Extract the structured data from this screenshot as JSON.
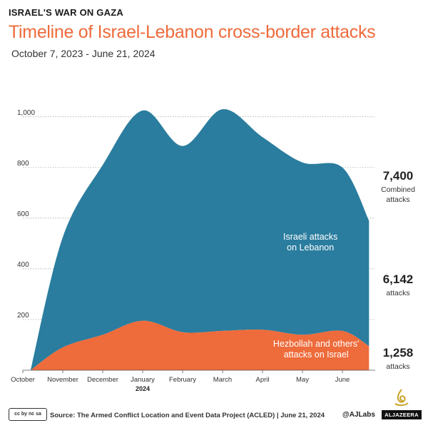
{
  "header": {
    "kicker": "ISRAEL'S WAR ON GAZA",
    "title": "Timeline of Israel-Lebanon cross-border attacks",
    "subtitle": "October 7, 2023 - June 21, 2024"
  },
  "chart_data": {
    "type": "area",
    "stacked": true,
    "x": [
      "2023-10-07",
      "2023-11-01",
      "2023-12-01",
      "2024-01-01",
      "2024-02-01",
      "2024-03-01",
      "2024-04-01",
      "2024-05-01",
      "2024-06-01",
      "2024-06-21"
    ],
    "x_tick_labels": [
      "October",
      "November",
      "December",
      "January",
      "February",
      "March",
      "April",
      "May",
      "June"
    ],
    "x_year_label": "2024",
    "y_ticks": [
      "200",
      "400",
      "600",
      "800",
      "1,000"
    ],
    "ylim": [
      0,
      1050
    ],
    "grid": true,
    "series": [
      {
        "name": "Hezbollah and others' attacks on Israel",
        "color": "#ee6b3b",
        "values": [
          0,
          90,
          140,
          195,
          150,
          155,
          160,
          140,
          155,
          95
        ]
      },
      {
        "name": "Israeli attacks on Lebanon",
        "color": "#2a7d9e",
        "values": [
          0,
          435,
          670,
          830,
          735,
          875,
          760,
          680,
          645,
          495
        ]
      }
    ],
    "labels": {
      "israeli": [
        "Israeli attacks",
        "on Lebanon"
      ],
      "hezbollah": [
        "Hezbollah and others'",
        "attacks on Israel"
      ]
    },
    "totals": [
      {
        "value": "7,400",
        "unit_lines": [
          "Combined",
          "attacks"
        ]
      },
      {
        "value": "6,142",
        "unit_lines": [
          "attacks"
        ]
      },
      {
        "value": "1,258",
        "unit_lines": [
          "attacks"
        ]
      }
    ]
  },
  "footer": {
    "license_badge": "cc by nc sa",
    "source": "Source: The Armed Conflict Location and Event Data Project (ACLED) | June 21, 2024",
    "credit": "@AJLabs",
    "logo_text": "ALJAZEERA",
    "logo_icon": "aljazeera-calligraphy-icon"
  }
}
